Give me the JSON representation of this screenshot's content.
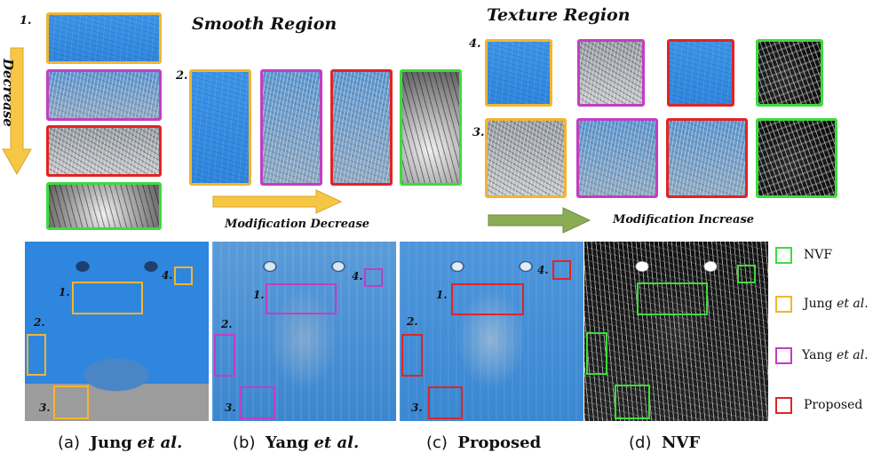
{
  "colors": {
    "jung": "#f2b531",
    "yang": "#c23ec2",
    "proposed": "#e02424",
    "nvf": "#3ddc3d",
    "arrow_yellow": "#f6c744",
    "arrow_green": "#8aac55"
  },
  "top": {
    "smooth_title": "Smooth Region",
    "texture_title": "Texture Region",
    "decrease_label": "Decrease",
    "modification_decrease": "Modification Decrease",
    "modification_increase": "Modification Increase",
    "region_numbers": [
      "1.",
      "2.",
      "3.",
      "4."
    ]
  },
  "faces": {
    "markers": [
      "1.",
      "2.",
      "3.",
      "4."
    ]
  },
  "captions": [
    {
      "label": "(a)",
      "name": "Jung",
      "suffix": "et al."
    },
    {
      "label": "(b)",
      "name": "Yang",
      "suffix": "et al."
    },
    {
      "label": "(c)",
      "name": "Proposed",
      "suffix": ""
    },
    {
      "label": "(d)",
      "name": "NVF",
      "suffix": ""
    }
  ],
  "legend": [
    {
      "name": "NVF",
      "suffix": ""
    },
    {
      "name": "Jung",
      "suffix": "et al."
    },
    {
      "name": "Yang",
      "suffix": "et al."
    },
    {
      "name": "Proposed",
      "suffix": ""
    }
  ]
}
